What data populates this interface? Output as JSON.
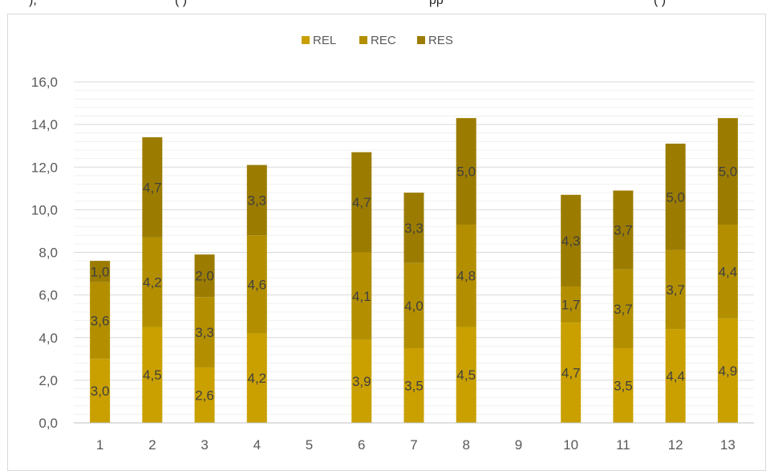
{
  "caption_fragment": {
    "left": "), ",
    "middle": "(   )",
    "right": "pp",
    "far_right": "(   )"
  },
  "chart_data": {
    "type": "bar",
    "stacked": true,
    "categories": [
      "1",
      "2",
      "3",
      "4",
      "5",
      "6",
      "7",
      "8",
      "9",
      "10",
      "11",
      "12",
      "13"
    ],
    "series": [
      {
        "name": "REL",
        "color": "#C9A000",
        "values": [
          3.0,
          4.5,
          2.6,
          4.2,
          null,
          3.9,
          3.5,
          4.5,
          null,
          4.7,
          3.5,
          4.4,
          4.9
        ]
      },
      {
        "name": "REC",
        "color": "#B38F00",
        "values": [
          3.6,
          4.2,
          3.3,
          4.6,
          null,
          4.1,
          4.0,
          4.8,
          null,
          1.7,
          3.7,
          3.7,
          4.4
        ]
      },
      {
        "name": "RES",
        "color": "#9C7C00",
        "values": [
          1.0,
          4.7,
          2.0,
          3.3,
          null,
          4.7,
          3.3,
          5.0,
          null,
          4.3,
          3.7,
          5.0,
          5.0
        ]
      }
    ],
    "y_ticks": [
      "0,0",
      "2,0",
      "4,0",
      "6,0",
      "8,0",
      "10,0",
      "12,0",
      "14,0",
      "16,0"
    ],
    "ylim": [
      0,
      16
    ],
    "minor_gridlines_step": 0.4,
    "legend_position": "top-center",
    "grid": true,
    "title": "",
    "xlabel": "",
    "ylabel": ""
  }
}
